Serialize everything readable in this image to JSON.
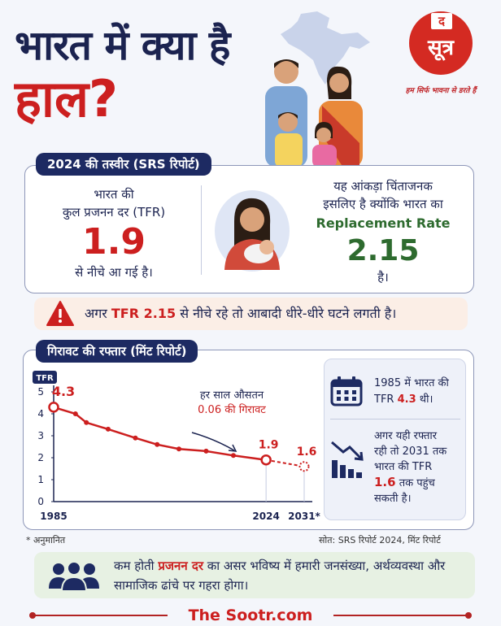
{
  "headline": {
    "line1": "भारत में क्या है",
    "line2": "हाल?"
  },
  "logo": {
    "small": "द",
    "main": "सूत्र",
    "tagline": "हम सिर्फ भावना से डरते हैं"
  },
  "srs": {
    "pill": "2024 की तस्वीर (SRS रिपोर्ट)",
    "tfr_line1": "भारत की",
    "tfr_line2": "कुल प्रजनन दर (TFR)",
    "tfr_value": "1.9",
    "tfr_line3": "से नीचे आ गई है।",
    "rep_line1": "यह आंकड़ा चिंताजनक",
    "rep_line2": "इसलिए है क्योंकि भारत का",
    "rep_label": "Replacement Rate",
    "rep_value": "2.15",
    "rep_line3": "है।"
  },
  "warning": {
    "pre": "अगर",
    "highlight": "TFR 2.15",
    "post": "से नीचे रहे तो आबादी धीरे-धीरे घटने लगती है।"
  },
  "mint": {
    "pill": "गिरावट की रफ्तार (मिंट रिपोर्ट)",
    "annotation_line1": "हर साल औसतन",
    "annotation_line2": "0.06 की गिरावट",
    "info1_pre": "1985 में भारत की",
    "info1_tfr": "TFR",
    "info1_value": "4.3",
    "info1_post": "थी।",
    "info2_line1": "अगर यही रफ्तार",
    "info2_line2": "रही तो 2031 तक",
    "info2_line3": "भारत की TFR",
    "info2_value": "1.6",
    "info2_line4": "तक पहुंच",
    "info2_line5": "सकती है।"
  },
  "chart_data": {
    "type": "line",
    "ylabel": "TFR",
    "y_ticks": [
      0,
      1,
      2,
      3,
      4,
      5
    ],
    "ylim": [
      0,
      5
    ],
    "xlim": [
      1985,
      2031
    ],
    "x_tick_labels": [
      "1985",
      "2024",
      "2031*"
    ],
    "x_tick_values": [
      1985,
      2024,
      2031
    ],
    "series": [
      {
        "points": [
          {
            "x": 1985,
            "y": 4.3
          },
          {
            "x": 1989,
            "y": 4.0
          },
          {
            "x": 1991,
            "y": 3.6
          },
          {
            "x": 1995,
            "y": 3.3
          },
          {
            "x": 2000,
            "y": 2.9
          },
          {
            "x": 2004,
            "y": 2.6
          },
          {
            "x": 2008,
            "y": 2.4
          },
          {
            "x": 2013,
            "y": 2.3
          },
          {
            "x": 2018,
            "y": 2.1
          },
          {
            "x": 2024,
            "y": 1.9
          }
        ],
        "projection": [
          {
            "x": 2024,
            "y": 1.9
          },
          {
            "x": 2031,
            "y": 1.6
          }
        ]
      }
    ],
    "labels": [
      {
        "x": 1985,
        "y": 4.3,
        "text": "4.3",
        "color": "#cc1f1f"
      },
      {
        "x": 2024,
        "y": 1.9,
        "text": "1.9",
        "color": "#cc1f1f"
      },
      {
        "x": 2031,
        "y": 1.6,
        "text": "1.6",
        "color": "#cc1f1f"
      }
    ],
    "line_color": "#cc1f1f"
  },
  "notes": {
    "estimate": "* अनुमानित",
    "source": "सोत: SRS रिपोर्ट 2024, मिंट रिपोर्ट"
  },
  "bottom": {
    "pre": "कम होती",
    "highlight": "प्रजनन दर",
    "post": "का असर भविष्य में हमारी जनसंख्या, अर्थव्यवस्था और सामाजिक ढांचे पर गहरा होगा।"
  },
  "footer": "The Sootr.com",
  "colors": {
    "navy": "#1b2350",
    "red": "#cc1f1f",
    "green": "#2e6b2f"
  }
}
